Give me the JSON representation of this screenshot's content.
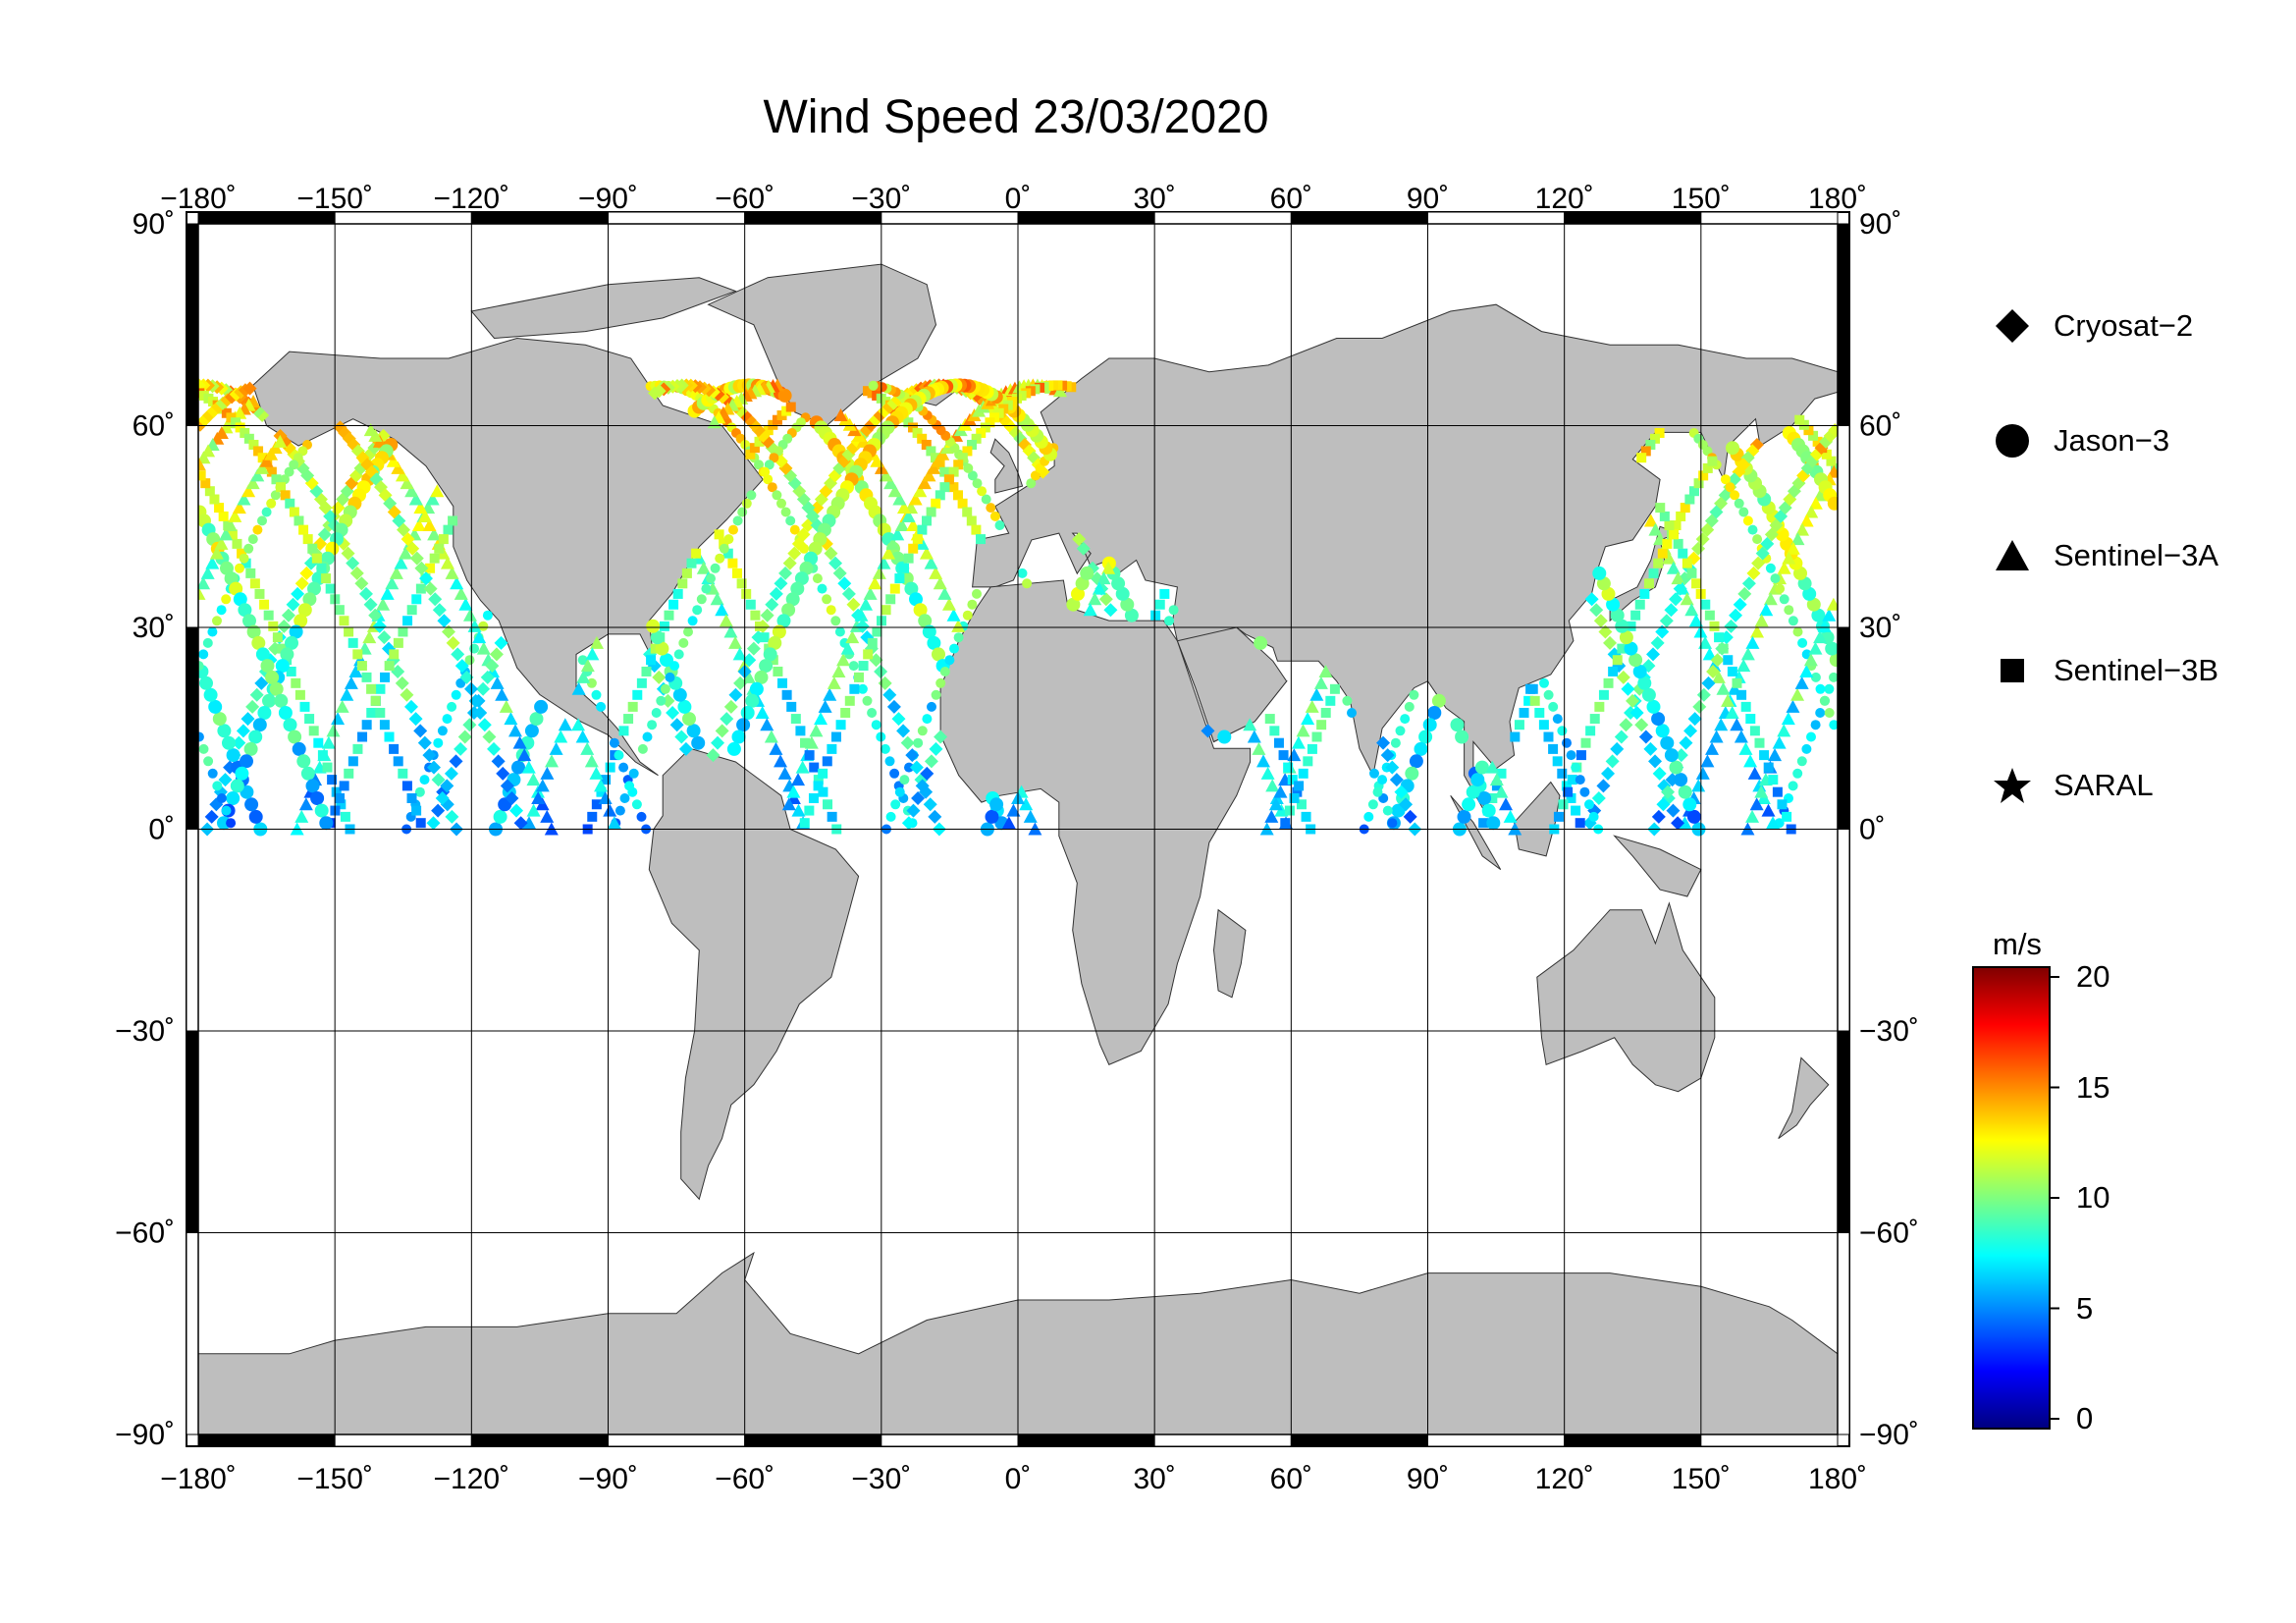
{
  "title": "Wind Speed 23/03/2020",
  "map": {
    "lon_ticks": [
      -180,
      -150,
      -120,
      -90,
      -60,
      -30,
      0,
      30,
      60,
      90,
      120,
      150,
      180
    ],
    "lat_ticks": [
      90,
      60,
      30,
      0,
      -30,
      -60,
      -90
    ],
    "lon_labels": [
      "−180˚",
      "−150˚",
      "−120˚",
      "−90˚",
      "−60˚",
      "−30˚",
      "0˚",
      "30˚",
      "60˚",
      "90˚",
      "120˚",
      "150˚",
      "180˚"
    ],
    "lat_labels": [
      "90˚",
      "60˚",
      "30˚",
      "0˚",
      "−30˚",
      "−60˚",
      "−90˚"
    ],
    "land_color": "#bebebe",
    "ocean_color": "#ffffff"
  },
  "legend": {
    "items": [
      {
        "label": "Cryosat−2",
        "icon": "diamond-icon"
      },
      {
        "label": "Jason−3",
        "icon": "circle-icon"
      },
      {
        "label": "Sentinel−3A",
        "icon": "triangle-icon"
      },
      {
        "label": "Sentinel−3B",
        "icon": "square-icon"
      },
      {
        "label": "SARAL",
        "icon": "star-icon"
      }
    ]
  },
  "colorbar": {
    "unit": "m/s",
    "min": 0,
    "max": 20,
    "ticks": [
      0,
      5,
      10,
      15,
      20
    ],
    "tick_labels": [
      "0",
      "5",
      "10",
      "15",
      "20"
    ],
    "colormap": "jet",
    "colors": [
      "#00007f",
      "#0000ff",
      "#007fff",
      "#00ffff",
      "#7fff7f",
      "#ffff00",
      "#ff7f00",
      "#ff0000",
      "#7f0000"
    ]
  },
  "chart_data": {
    "type": "scatter",
    "title": "Wind Speed 23/03/2020",
    "xlim": [
      -180,
      180
    ],
    "ylim": [
      -90,
      90
    ],
    "color_scale": [
      0,
      20
    ],
    "series": [
      {
        "name": "Cryosat−2",
        "marker": "diamond"
      },
      {
        "name": "Jason−3",
        "marker": "circle"
      },
      {
        "name": "Sentinel−3A",
        "marker": "triangle"
      },
      {
        "name": "Sentinel−3B",
        "marker": "square"
      },
      {
        "name": "SARAL",
        "marker": "star"
      }
    ]
  }
}
